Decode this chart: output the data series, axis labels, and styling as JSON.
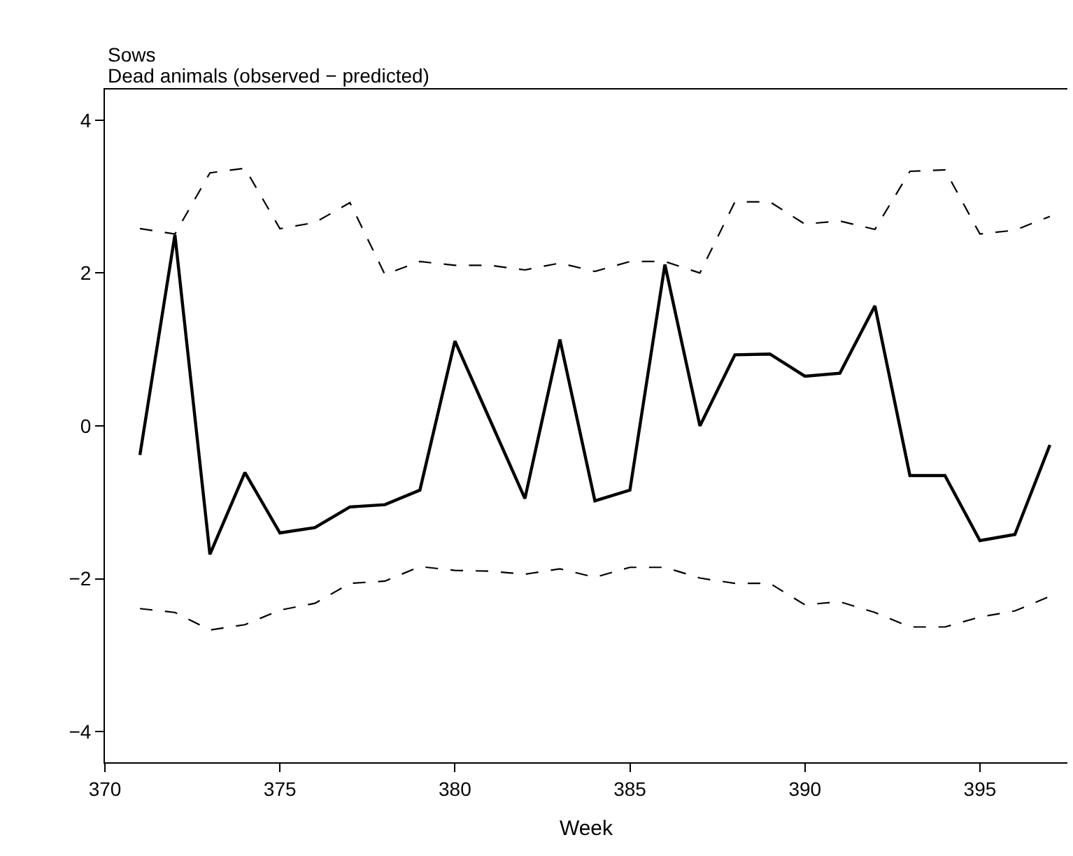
{
  "chart_data": {
    "type": "line",
    "title": "Sows",
    "subtitle": "Dead animals (observed − predicted)",
    "xlabel": "Week",
    "x": [
      371,
      372,
      373,
      374,
      375,
      376,
      377,
      378,
      379,
      380,
      381,
      382,
      383,
      384,
      385,
      386,
      387,
      388,
      389,
      390,
      391,
      392,
      393,
      394,
      395,
      396,
      397
    ],
    "series": [
      {
        "color": "#000000",
        "line_style": "solid",
        "values": [
          -0.38,
          2.5,
          -1.68,
          -0.61,
          -1.4,
          -1.33,
          -1.06,
          -1.03,
          -0.84,
          1.11,
          0.08,
          -0.95,
          1.13,
          -0.98,
          -0.84,
          2.11,
          0.0,
          0.93,
          0.94,
          0.65,
          0.69,
          1.57,
          -0.65,
          -0.65,
          -1.5,
          -1.42,
          -0.25
        ]
      },
      {
        "color": "#000000",
        "line_style": "dashed",
        "values": [
          2.58,
          2.51,
          3.31,
          3.37,
          2.58,
          2.66,
          2.92,
          1.98,
          2.15,
          2.1,
          2.1,
          2.04,
          2.13,
          2.02,
          2.15,
          2.15,
          2.0,
          2.93,
          2.93,
          2.64,
          2.68,
          2.57,
          3.33,
          3.35,
          2.51,
          2.56,
          2.74
        ]
      },
      {
        "color": "#000000",
        "line_style": "dashed",
        "values": [
          -2.39,
          -2.44,
          -2.67,
          -2.6,
          -2.41,
          -2.32,
          -2.06,
          -2.03,
          -1.84,
          -1.89,
          -1.9,
          -1.94,
          -1.87,
          -1.98,
          -1.85,
          -1.85,
          -1.99,
          -2.06,
          -2.06,
          -2.34,
          -2.3,
          -2.44,
          -2.63,
          -2.63,
          -2.5,
          -2.42,
          -2.23
        ]
      }
    ],
    "xlim": [
      370,
      397.5
    ],
    "xticks": [
      370,
      375,
      380,
      385,
      390,
      395
    ],
    "ylim": [
      -4.4,
      4.4
    ],
    "yticks": [
      -4,
      -2,
      0,
      2,
      4
    ],
    "marker": "none"
  }
}
